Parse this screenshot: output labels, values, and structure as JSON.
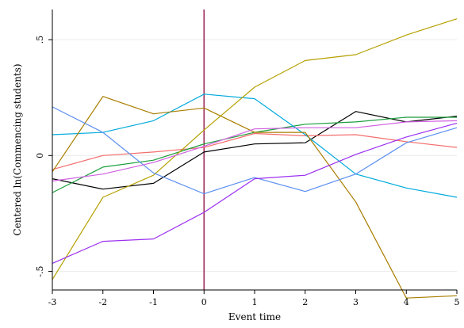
{
  "chart_data": {
    "type": "line",
    "title": "",
    "xlabel": "Event time",
    "ylabel": "Centered ln(Commencing students)",
    "x": [
      -3,
      -2,
      -1,
      0,
      1,
      2,
      3,
      4,
      5
    ],
    "xlim": [
      -3,
      5
    ],
    "ylim": [
      -0.58,
      0.63
    ],
    "xticks": [
      {
        "value": -3,
        "label": "-3"
      },
      {
        "value": -2,
        "label": "-2"
      },
      {
        "value": -1,
        "label": "-1"
      },
      {
        "value": 0,
        "label": "0"
      },
      {
        "value": 1,
        "label": "1"
      },
      {
        "value": 2,
        "label": "2"
      },
      {
        "value": 3,
        "label": "3"
      },
      {
        "value": 4,
        "label": "4"
      },
      {
        "value": 5,
        "label": "5"
      }
    ],
    "yticks": [
      {
        "value": -0.5,
        "label": "-.5"
      },
      {
        "value": 0,
        "label": "0"
      },
      {
        "value": 0.5,
        "label": ".5"
      }
    ],
    "grid": {
      "horizontal": true,
      "vertical": false
    },
    "reference_line": {
      "x": 0,
      "color": "#a0305a"
    },
    "legend": "none",
    "series": [
      {
        "color": "#000000",
        "values": [
          -0.1,
          -0.145,
          -0.12,
          0.015,
          0.05,
          0.055,
          0.19,
          0.145,
          0.17
        ]
      },
      {
        "color": "#f46d6d",
        "values": [
          -0.06,
          0.0,
          0.015,
          0.035,
          0.095,
          0.085,
          0.09,
          0.06,
          0.035
        ]
      },
      {
        "color": "#1a9e3c",
        "values": [
          -0.16,
          -0.05,
          -0.02,
          0.05,
          0.1,
          0.135,
          0.145,
          0.165,
          0.165
        ]
      },
      {
        "color": "#00aadd",
        "values": [
          0.09,
          0.1,
          0.15,
          0.265,
          0.245,
          0.09,
          -0.08,
          -0.14,
          -0.18
        ]
      },
      {
        "color": "#a97d00",
        "values": [
          -0.07,
          0.255,
          0.18,
          0.205,
          0.1,
          0.1,
          -0.2,
          -0.615,
          -0.605
        ]
      },
      {
        "color": "#b5a000",
        "values": [
          -0.535,
          -0.18,
          -0.085,
          0.11,
          0.295,
          0.41,
          0.435,
          0.52,
          0.59
        ]
      },
      {
        "color": "#5b8ff0",
        "values": [
          0.21,
          0.1,
          -0.075,
          -0.165,
          -0.095,
          -0.155,
          -0.08,
          0.055,
          0.12
        ]
      },
      {
        "color": "#9b30f0",
        "values": [
          -0.465,
          -0.37,
          -0.36,
          -0.245,
          -0.1,
          -0.085,
          0.005,
          0.08,
          0.14
        ]
      },
      {
        "color": "#d060e0",
        "values": [
          -0.11,
          -0.08,
          -0.03,
          0.04,
          0.115,
          0.12,
          0.12,
          0.145,
          0.15
        ]
      }
    ]
  }
}
